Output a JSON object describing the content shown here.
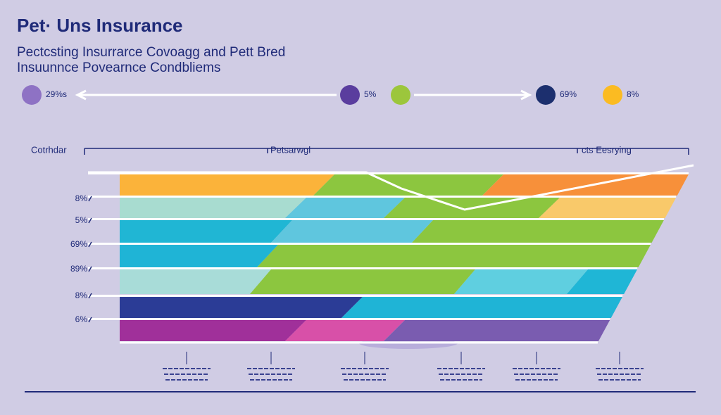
{
  "header": {
    "title": "Pet· Uns Insurance",
    "subtitle": [
      "Pectcsting Insurrarce Covoagg and Pett Bred",
      "Insuunnce Povearnce Condbliems"
    ]
  },
  "legend": [
    {
      "label": "29%s",
      "color": "#8e72c4"
    },
    {
      "label": "5%",
      "color": "#5a3d9e"
    },
    {
      "color": "#9cc63c"
    },
    {
      "label": "69%",
      "color": "#1c2f6e"
    },
    {
      "label": "8%",
      "color": "#fbbb22"
    }
  ],
  "scale": {
    "labels": [
      "Cotrhdar",
      "Petsarwgl",
      "cts Eesrying"
    ]
  },
  "row_labels": [
    "8%",
    "5%",
    "69%",
    "89%",
    "8%",
    "6%"
  ]
}
